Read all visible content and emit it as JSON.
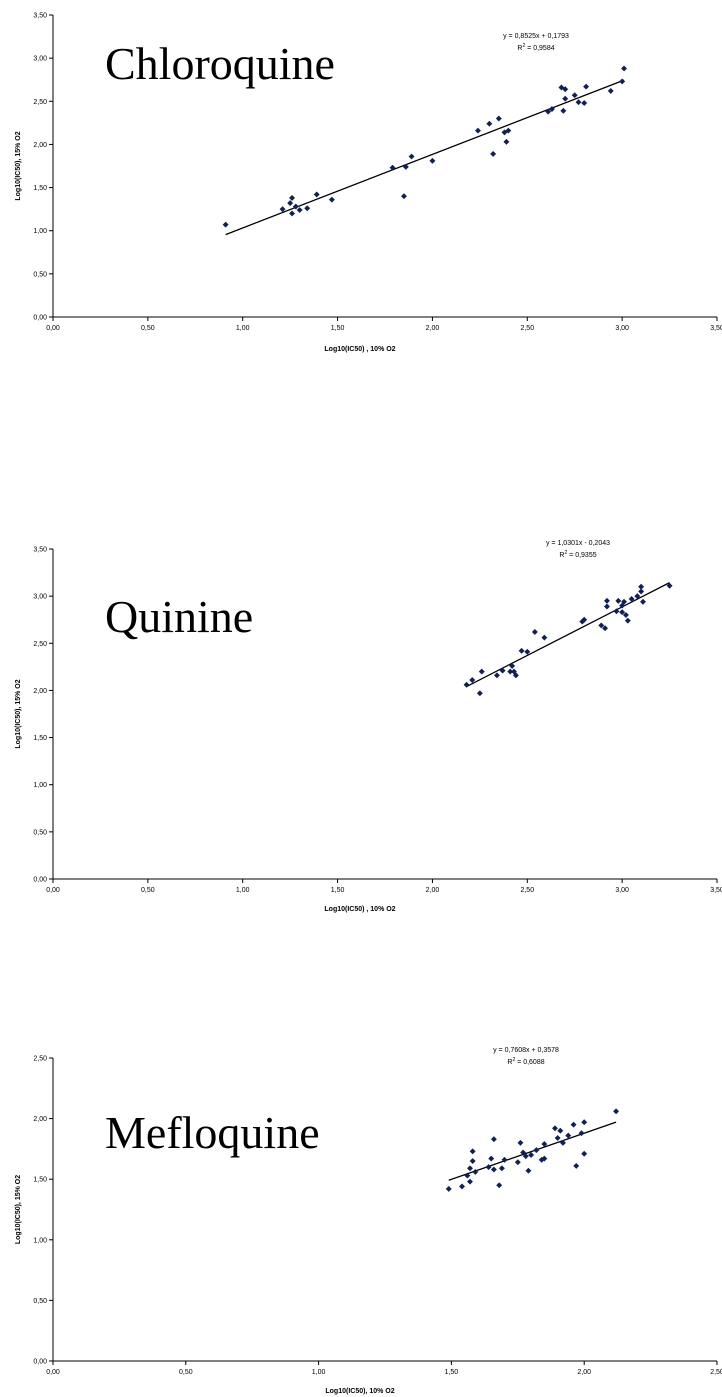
{
  "chart_data": [
    {
      "type": "scatter",
      "title": "Chloroquine",
      "xlabel": "Log10(IC50) , 10% O2",
      "ylabel": "Log10(IC50), 15% O2",
      "xlim": [
        0,
        3.5
      ],
      "ylim": [
        0,
        3.5
      ],
      "xticks": [
        "0,00",
        "0,50",
        "1,00",
        "1,50",
        "2,00",
        "2,50",
        "3,00",
        "3,50"
      ],
      "yticks": [
        "0,00",
        "0,50",
        "1,00",
        "1,50",
        "2,00",
        "2,50",
        "3,00",
        "3,50"
      ],
      "trendline": {
        "slope": 0.8525,
        "intercept": 0.1793,
        "x_range": [
          0.91,
          3.01
        ]
      },
      "equation": "y = 0,8525x + 0,1793",
      "r2_label": "R",
      "r2_value": " = 0,9584",
      "grid": false,
      "series": [
        {
          "points": [
            [
              0.91,
              1.07
            ],
            [
              1.21,
              1.25
            ],
            [
              1.25,
              1.32
            ],
            [
              1.26,
              1.38
            ],
            [
              1.26,
              1.2
            ],
            [
              1.28,
              1.28
            ],
            [
              1.3,
              1.24
            ],
            [
              1.34,
              1.26
            ],
            [
              1.39,
              1.42
            ],
            [
              1.47,
              1.36
            ],
            [
              1.79,
              1.73
            ],
            [
              1.85,
              1.4
            ],
            [
              1.86,
              1.74
            ],
            [
              1.89,
              1.86
            ],
            [
              2.0,
              1.81
            ],
            [
              2.24,
              2.16
            ],
            [
              2.3,
              2.24
            ],
            [
              2.32,
              1.89
            ],
            [
              2.35,
              2.3
            ],
            [
              2.38,
              2.14
            ],
            [
              2.39,
              2.03
            ],
            [
              2.4,
              2.16
            ],
            [
              2.61,
              2.38
            ],
            [
              2.63,
              2.41
            ],
            [
              2.68,
              2.66
            ],
            [
              2.69,
              2.39
            ],
            [
              2.7,
              2.64
            ],
            [
              2.7,
              2.53
            ],
            [
              2.75,
              2.57
            ],
            [
              2.77,
              2.49
            ],
            [
              2.8,
              2.48
            ],
            [
              2.81,
              2.67
            ],
            [
              2.94,
              2.62
            ],
            [
              3.0,
              2.73
            ],
            [
              3.01,
              2.88
            ]
          ]
        }
      ]
    },
    {
      "type": "scatter",
      "title": "Quinine",
      "xlabel": "Log10(IC50) , 10% O2",
      "ylabel": "Log10(IC50), 15% O2",
      "xlim": [
        0,
        3.5
      ],
      "ylim": [
        0,
        3.5
      ],
      "xticks": [
        "0,00",
        "0,50",
        "1,00",
        "1,50",
        "2,00",
        "2,50",
        "3,00",
        "3,50"
      ],
      "yticks": [
        "0,00",
        "0,50",
        "1,00",
        "1,50",
        "2,00",
        "2,50",
        "3,00",
        "3,50"
      ],
      "trendline": {
        "slope": 1.0301,
        "intercept": -0.2043,
        "x_range": [
          2.18,
          3.25
        ]
      },
      "equation": "y = 1,0301x - 0,2043",
      "r2_label": "R",
      "r2_value": " = 0,9355",
      "grid": false,
      "series": [
        {
          "points": [
            [
              2.18,
              2.06
            ],
            [
              2.21,
              2.11
            ],
            [
              2.25,
              1.97
            ],
            [
              2.26,
              2.2
            ],
            [
              2.34,
              2.16
            ],
            [
              2.37,
              2.21
            ],
            [
              2.41,
              2.2
            ],
            [
              2.42,
              2.26
            ],
            [
              2.43,
              2.2
            ],
            [
              2.44,
              2.16
            ],
            [
              2.47,
              2.42
            ],
            [
              2.5,
              2.41
            ],
            [
              2.54,
              2.62
            ],
            [
              2.59,
              2.56
            ],
            [
              2.79,
              2.73
            ],
            [
              2.8,
              2.75
            ],
            [
              2.89,
              2.69
            ],
            [
              2.91,
              2.66
            ],
            [
              2.92,
              2.95
            ],
            [
              2.92,
              2.89
            ],
            [
              2.97,
              2.84
            ],
            [
              2.98,
              2.95
            ],
            [
              3.0,
              2.9
            ],
            [
              3.0,
              2.83
            ],
            [
              3.01,
              2.94
            ],
            [
              3.02,
              2.8
            ],
            [
              3.03,
              2.74
            ],
            [
              3.05,
              2.97
            ],
            [
              3.08,
              3.0
            ],
            [
              3.1,
              3.05
            ],
            [
              3.1,
              3.1
            ],
            [
              3.11,
              2.94
            ],
            [
              3.25,
              3.11
            ]
          ]
        }
      ]
    },
    {
      "type": "scatter",
      "title": "Mefloquine",
      "xlabel": "Log10(IC50), 10% O2",
      "ylabel": "Log10(IC50), 15% O2",
      "xlim": [
        0,
        2.5
      ],
      "ylim": [
        0,
        2.5
      ],
      "xticks": [
        "0,00",
        "0,50",
        "1,00",
        "1,50",
        "2,00",
        "2,50"
      ],
      "yticks": [
        "0,00",
        "0,50",
        "1,00",
        "1,50",
        "2,00",
        "2,50"
      ],
      "trendline": {
        "slope": 0.7608,
        "intercept": 0.3578,
        "x_range": [
          1.49,
          2.12
        ]
      },
      "equation": "y = 0,7608x + 0,3578",
      "r2_label": "R",
      "r2_value": " = 0,6088",
      "grid": false,
      "series": [
        {
          "points": [
            [
              1.49,
              1.42
            ],
            [
              1.54,
              1.44
            ],
            [
              1.56,
              1.53
            ],
            [
              1.57,
              1.48
            ],
            [
              1.57,
              1.59
            ],
            [
              1.58,
              1.73
            ],
            [
              1.58,
              1.65
            ],
            [
              1.59,
              1.56
            ],
            [
              1.64,
              1.6
            ],
            [
              1.65,
              1.67
            ],
            [
              1.66,
              1.83
            ],
            [
              1.66,
              1.58
            ],
            [
              1.68,
              1.45
            ],
            [
              1.69,
              1.59
            ],
            [
              1.7,
              1.66
            ],
            [
              1.75,
              1.64
            ],
            [
              1.76,
              1.8
            ],
            [
              1.77,
              1.72
            ],
            [
              1.78,
              1.69
            ],
            [
              1.79,
              1.57
            ],
            [
              1.8,
              1.7
            ],
            [
              1.82,
              1.74
            ],
            [
              1.84,
              1.66
            ],
            [
              1.85,
              1.67
            ],
            [
              1.85,
              1.79
            ],
            [
              1.89,
              1.92
            ],
            [
              1.9,
              1.84
            ],
            [
              1.91,
              1.9
            ],
            [
              1.92,
              1.8
            ],
            [
              1.94,
              1.86
            ],
            [
              1.96,
              1.95
            ],
            [
              1.97,
              1.61
            ],
            [
              1.99,
              1.88
            ],
            [
              2.0,
              1.97
            ],
            [
              2.0,
              1.71
            ],
            [
              2.12,
              2.06
            ]
          ]
        }
      ]
    }
  ]
}
